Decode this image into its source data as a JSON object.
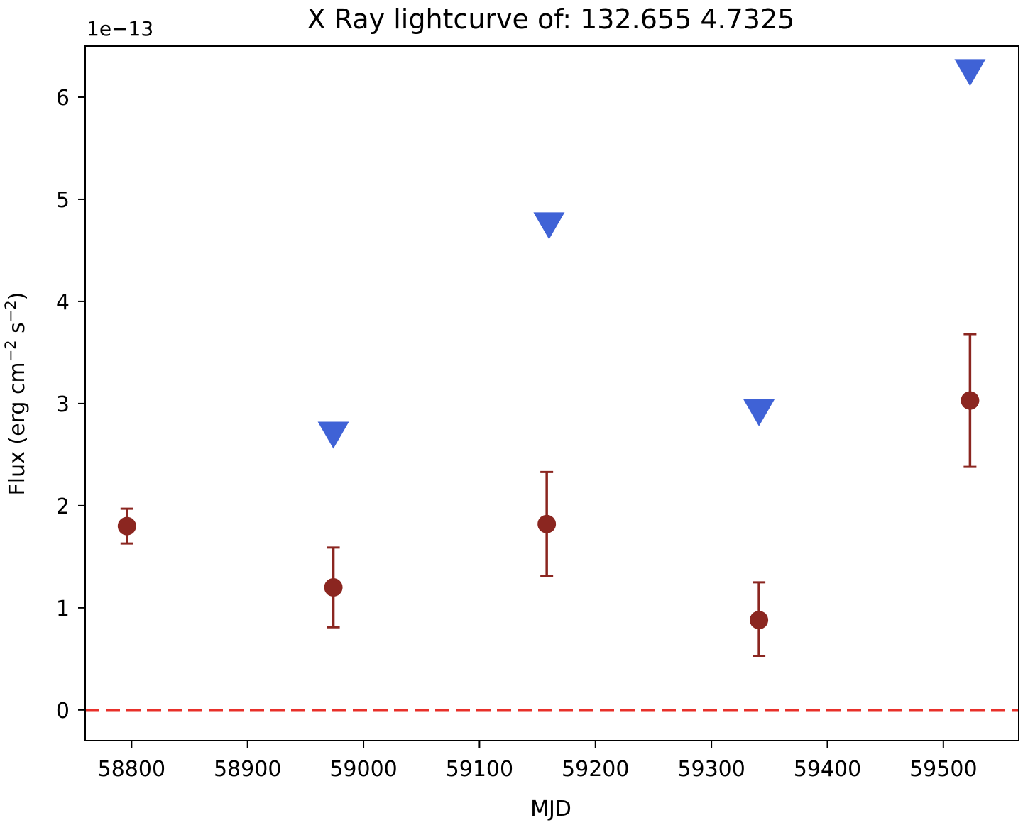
{
  "chart_data": {
    "type": "scatter",
    "title": "X Ray lightcurve of: 132.655 4.7325",
    "xlabel": "MJD",
    "ylabel": "Flux (erg cm",
    "ylabel_sup1": "−2",
    "ylabel_mid": " s",
    "ylabel_sup2": "−2",
    "ylabel_end": ")",
    "y_offset_text": "1e−13",
    "xlim": [
      58760,
      59565
    ],
    "ylim": [
      -0.3,
      6.5
    ],
    "y_scale_factor": 1e-13,
    "x_ticks": [
      58800,
      58900,
      59000,
      59100,
      59200,
      59300,
      59400,
      59500
    ],
    "x_tick_labels": [
      "58800",
      "58900",
      "59000",
      "59100",
      "59200",
      "59300",
      "59400",
      "59500"
    ],
    "y_ticks": [
      0,
      1,
      2,
      3,
      4,
      5,
      6
    ],
    "y_tick_labels": [
      "0",
      "1",
      "2",
      "3",
      "4",
      "5",
      "6"
    ],
    "grid": false,
    "series": [
      {
        "marker": "circle-errorbar",
        "color": "#8b2620",
        "points": [
          {
            "x": 58796,
            "y": 1.8,
            "err_lo": 0.17,
            "err_hi": 0.17
          },
          {
            "x": 58974,
            "y": 1.2,
            "err_lo": 0.39,
            "err_hi": 0.39
          },
          {
            "x": 59158,
            "y": 1.82,
            "err_lo": 0.51,
            "err_hi": 0.51
          },
          {
            "x": 59341,
            "y": 0.88,
            "err_lo": 0.35,
            "err_hi": 0.37
          },
          {
            "x": 59523,
            "y": 3.03,
            "err_lo": 0.65,
            "err_hi": 0.65
          }
        ]
      },
      {
        "marker": "triangle-down",
        "color": "#3f62d6",
        "points": [
          {
            "x": 58974,
            "y": 2.69
          },
          {
            "x": 59160,
            "y": 4.74
          },
          {
            "x": 59341,
            "y": 2.91
          },
          {
            "x": 59523,
            "y": 6.24
          }
        ]
      }
    ],
    "reference_line": {
      "y": 0,
      "style": "dashed",
      "color": "#e8302a"
    }
  }
}
